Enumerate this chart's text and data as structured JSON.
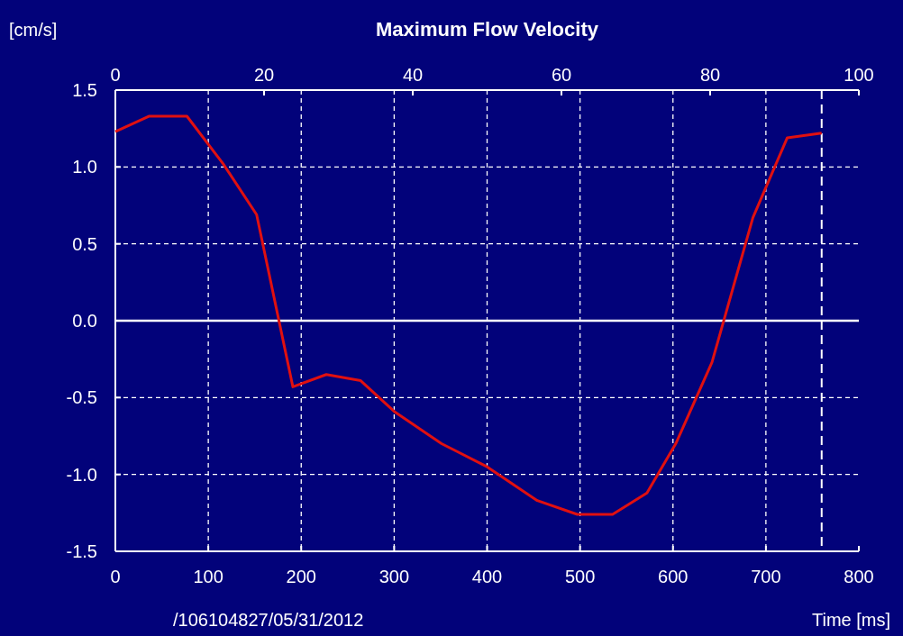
{
  "chart_data": {
    "type": "line",
    "title": "Maximum Flow Velocity",
    "ylabel": "[cm/s]",
    "xlabel": "Time [ms]",
    "annotations": [
      "/106104827/05/31/2012"
    ],
    "x": [
      0,
      36,
      77,
      116,
      152,
      191,
      227,
      264,
      300,
      351,
      400,
      454,
      497,
      535,
      572,
      603,
      642,
      686,
      723,
      760
    ],
    "series": [
      {
        "color": "#e01010",
        "values": [
          1.23,
          1.33,
          1.33,
          1.02,
          0.69,
          -0.43,
          -0.35,
          -0.39,
          -0.59,
          -0.8,
          -0.95,
          -1.17,
          -1.26,
          -1.26,
          -1.12,
          -0.8,
          -0.27,
          0.67,
          1.19,
          1.22
        ]
      }
    ],
    "xlim": [
      0,
      800
    ],
    "xticks": [
      0,
      100,
      200,
      300,
      400,
      500,
      600,
      700,
      800
    ],
    "x2lim": [
      0,
      100
    ],
    "x2ticks": [
      0,
      20,
      40,
      60,
      80,
      100
    ],
    "ylim": [
      -1.5,
      1.5
    ],
    "yticks": [
      {
        "value": -1.5,
        "label": "-1.5"
      },
      {
        "value": -1,
        "label": "-1.0"
      },
      {
        "value": -0.5,
        "label": "-0.5"
      },
      {
        "value": 0,
        "label": "0.0"
      },
      {
        "value": 0.5,
        "label": "0.5"
      },
      {
        "value": 1,
        "label": "1.0"
      },
      {
        "value": 1.5,
        "label": "1.5"
      }
    ],
    "grid": true,
    "marker": "none",
    "line_style": "solid",
    "ref_lines": [
      {
        "axis": "y",
        "value": 0,
        "color": "#ffffff",
        "line_style": "solid"
      },
      {
        "axis": "x",
        "value": 760,
        "color": "#ffffff",
        "line_style": "dashed"
      }
    ]
  }
}
